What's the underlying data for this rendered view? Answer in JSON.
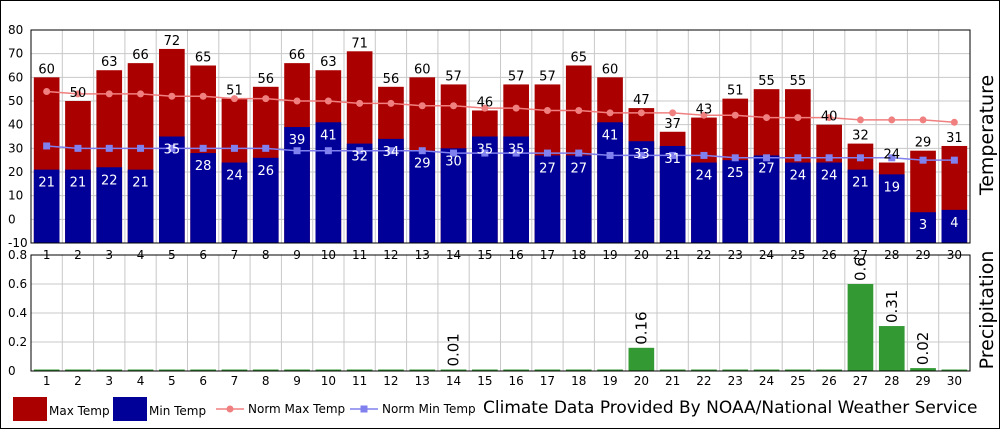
{
  "source_note": "Climate Data Provided By NOAA/National Weather Service",
  "chart_data": [
    {
      "type": "bar",
      "ylabel": "Temperature",
      "ylim": [
        -10,
        80
      ],
      "yticks": [
        -10,
        0,
        10,
        20,
        30,
        40,
        50,
        60,
        70,
        80
      ],
      "ytick_labels": [
        "-10",
        "0",
        "10",
        "20",
        "30",
        "40",
        "50",
        "60",
        "70",
        "80"
      ],
      "grid": true,
      "categories": [
        "1",
        "2",
        "3",
        "4",
        "5",
        "6",
        "7",
        "8",
        "9",
        "10",
        "11",
        "12",
        "13",
        "14",
        "15",
        "16",
        "17",
        "18",
        "19",
        "20",
        "21",
        "22",
        "23",
        "24",
        "25",
        "26",
        "27",
        "28",
        "29",
        "30"
      ],
      "series": [
        {
          "name": "Max Temp",
          "kind": "bar",
          "color": "#aa0000",
          "values": [
            60,
            50,
            63,
            66,
            72,
            65,
            51,
            56,
            66,
            63,
            71,
            56,
            60,
            57,
            46,
            57,
            57,
            65,
            60,
            47,
            37,
            43,
            51,
            55,
            55,
            40,
            32,
            24,
            29,
            31
          ]
        },
        {
          "name": "Min Temp",
          "kind": "bar",
          "color": "#000099",
          "values": [
            21,
            21,
            22,
            21,
            35,
            28,
            24,
            26,
            39,
            41,
            32,
            34,
            29,
            30,
            35,
            35,
            27,
            27,
            41,
            33,
            31,
            24,
            25,
            27,
            24,
            24,
            21,
            19,
            3,
            4
          ]
        },
        {
          "name": "Norm Max Temp",
          "kind": "line",
          "color": "#f08080",
          "values": [
            54,
            53,
            53,
            53,
            52,
            52,
            51,
            51,
            50,
            50,
            49,
            49,
            48,
            48,
            47,
            47,
            46,
            46,
            45,
            45,
            45,
            44,
            44,
            43,
            43,
            43,
            42,
            42,
            42,
            41
          ]
        },
        {
          "name": "Norm Min Temp",
          "kind": "line",
          "color": "#8080ee",
          "values": [
            31,
            30,
            30,
            30,
            30,
            30,
            30,
            30,
            29,
            29,
            29,
            29,
            29,
            28,
            28,
            28,
            28,
            28,
            27,
            27,
            27,
            27,
            26,
            26,
            26,
            26,
            26,
            26,
            25,
            25
          ]
        }
      ]
    },
    {
      "type": "bar",
      "ylabel": "Precipitation",
      "ylim": [
        0,
        0.8
      ],
      "yticks": [
        0,
        0.2,
        0.4,
        0.6,
        0.8
      ],
      "ytick_labels": [
        "0",
        "0.2",
        "0.4",
        "0.6",
        "0.8"
      ],
      "grid": true,
      "categories": [
        "1",
        "2",
        "3",
        "4",
        "5",
        "6",
        "7",
        "8",
        "9",
        "10",
        "11",
        "12",
        "13",
        "14",
        "15",
        "16",
        "17",
        "18",
        "19",
        "20",
        "21",
        "22",
        "23",
        "24",
        "25",
        "26",
        "27",
        "28",
        "29",
        "30"
      ],
      "series": [
        {
          "name": "Precipitation",
          "kind": "bar",
          "color": "#339933",
          "values": [
            0,
            0,
            0,
            0,
            0,
            0,
            0,
            0,
            0,
            0,
            0,
            0,
            0,
            0.01,
            0,
            0,
            0,
            0,
            0,
            0.16,
            0,
            0,
            0,
            0,
            0,
            0,
            0.6,
            0.31,
            0.02,
            0
          ],
          "labels": [
            "",
            "",
            "",
            "",
            "",
            "",
            "",
            "",
            "",
            "",
            "",
            "",
            "",
            "0.01",
            "",
            "",
            "",
            "",
            "",
            "0.16",
            "",
            "",
            "",
            "",
            "",
            "",
            "0.6",
            "0.31",
            "0.02",
            ""
          ]
        }
      ]
    }
  ]
}
